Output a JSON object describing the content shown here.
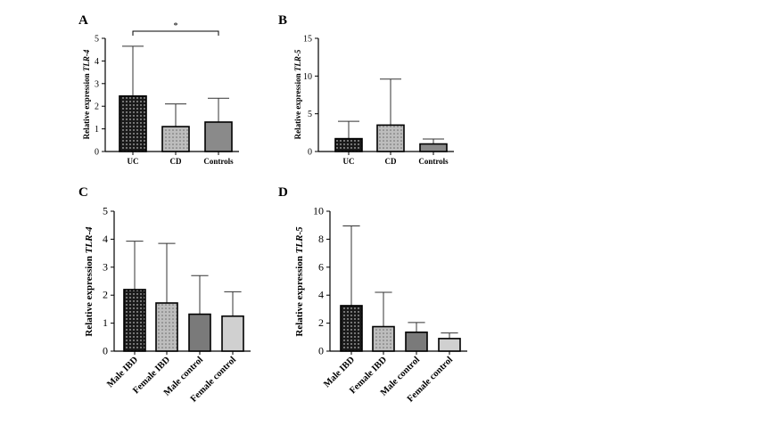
{
  "chart_data": [
    {
      "panel": "A",
      "type": "bar",
      "categories": [
        "UC",
        "CD",
        "Controls"
      ],
      "values": [
        2.45,
        1.1,
        1.3
      ],
      "error_upper": [
        4.65,
        2.1,
        2.35
      ],
      "ylabel_prefix": "Relative expression ",
      "ylabel_gene": "TLR-4",
      "ylim": [
        0,
        5
      ],
      "yticks": [
        "0",
        "1",
        "2",
        "3",
        "4",
        "5"
      ],
      "significance": {
        "from": 0,
        "to": 2,
        "label": "*"
      },
      "bar_colors": [
        "#1a1a1a",
        "#9a9a9a",
        "#8a8a8a"
      ]
    },
    {
      "panel": "B",
      "type": "bar",
      "categories": [
        "UC",
        "CD",
        "Controls"
      ],
      "values": [
        1.7,
        3.5,
        1.0
      ],
      "error_upper": [
        4.0,
        9.6,
        1.65
      ],
      "ylabel_prefix": "Relative expression ",
      "ylabel_gene": "TLR-5",
      "ylim": [
        0,
        15
      ],
      "yticks": [
        "0",
        "5",
        "10",
        "15"
      ],
      "bar_colors": [
        "#1a1a1a",
        "#9a9a9a",
        "#8a8a8a"
      ]
    },
    {
      "panel": "C",
      "type": "bar",
      "categories": [
        "Male IBD",
        "Female IBD",
        "Male control",
        "Female control"
      ],
      "values": [
        2.2,
        1.72,
        1.32,
        1.25
      ],
      "error_upper": [
        3.93,
        3.85,
        2.7,
        2.12
      ],
      "ylabel_prefix": "Relative expression ",
      "ylabel_gene": "TLR-4",
      "ylim": [
        0,
        5
      ],
      "yticks": [
        "0",
        "1",
        "2",
        "3",
        "4",
        "5"
      ],
      "bar_colors": [
        "#1a1a1a",
        "#9a9a9a",
        "#7a7a7a",
        "#d0d0d0"
      ]
    },
    {
      "panel": "D",
      "type": "bar",
      "categories": [
        "Male IBD",
        "Female IBD",
        "Male control",
        "Female control"
      ],
      "values": [
        3.25,
        1.75,
        1.35,
        0.9
      ],
      "error_upper": [
        8.95,
        4.2,
        2.05,
        1.3
      ],
      "ylabel_prefix": "Relative expression ",
      "ylabel_gene": "TLR-5",
      "ylim": [
        0,
        10
      ],
      "yticks": [
        "0",
        "2",
        "4",
        "6",
        "8",
        "10"
      ],
      "bar_colors": [
        "#1a1a1a",
        "#9a9a9a",
        "#7a7a7a",
        "#d0d0d0"
      ]
    }
  ]
}
